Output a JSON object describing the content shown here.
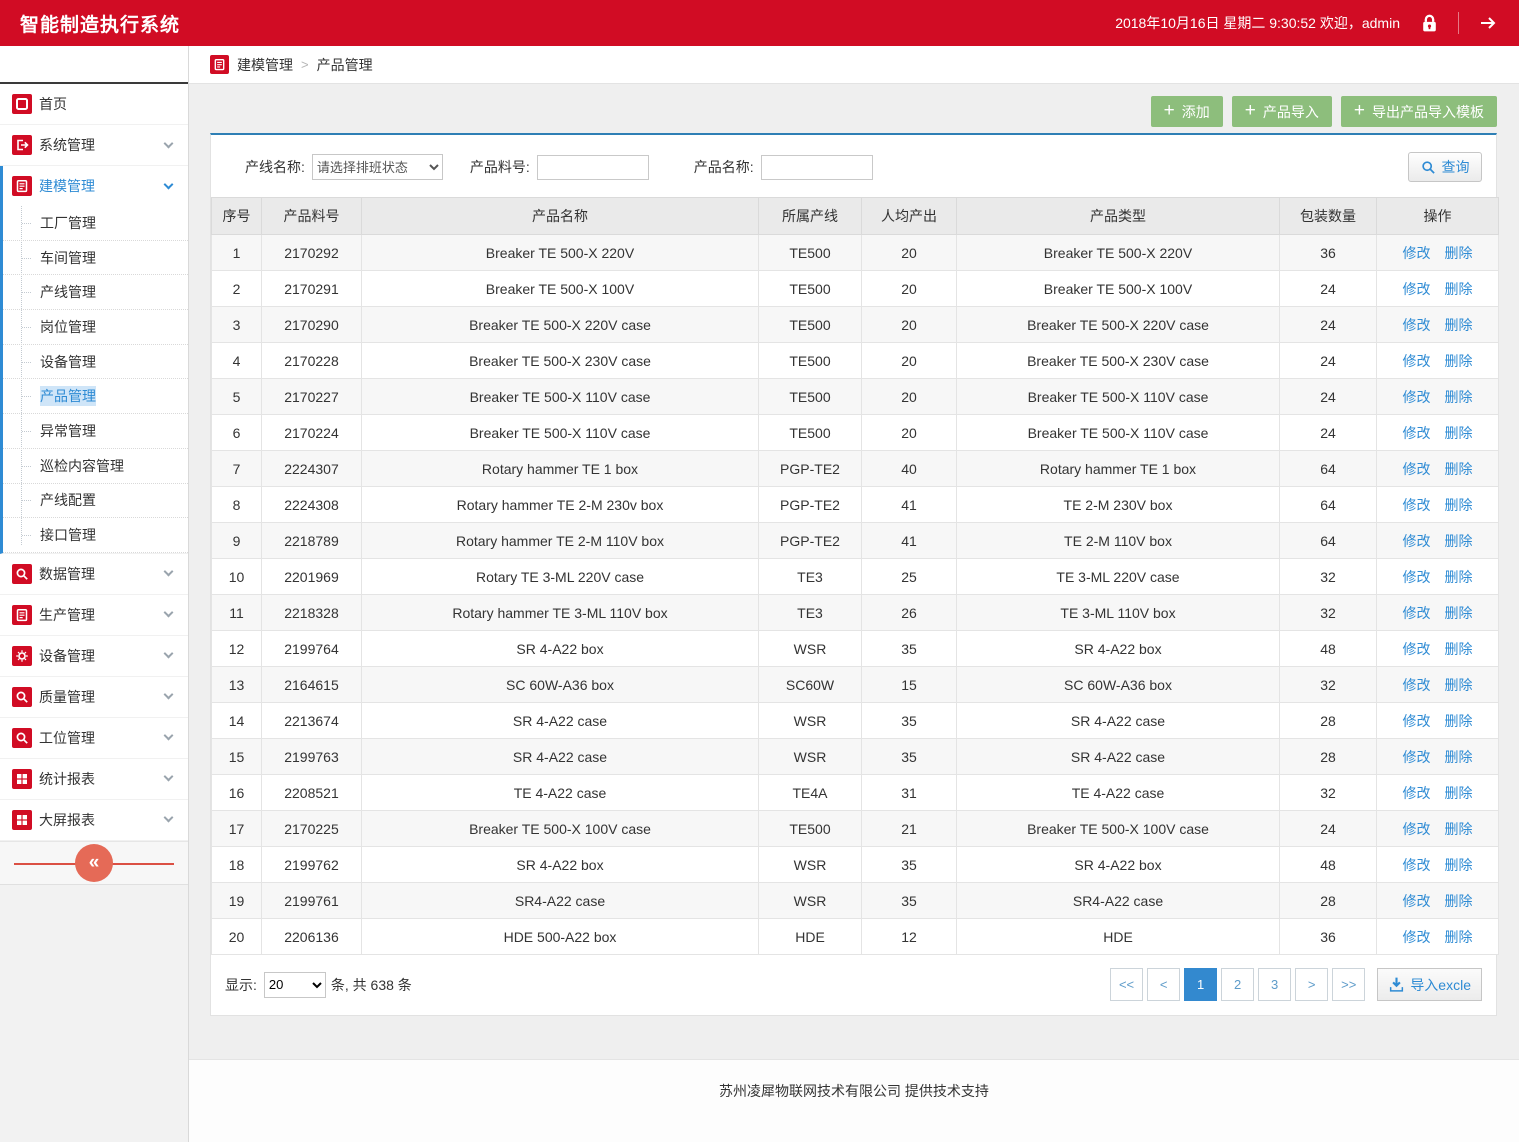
{
  "colors": {
    "header_red": "#d10c24",
    "accent_blue": "#2e8bd4",
    "button_green": "#8dbe7c",
    "panel_top_blue": "#2e7fb5"
  },
  "app": {
    "title": "智能制造执行系统",
    "datetime": "2018年10月16日 星期二 9:30:52 欢迎，admin"
  },
  "breadcrumb": {
    "section": "建模管理",
    "separator": ">",
    "page": "产品管理"
  },
  "sidebar": {
    "collapse_glyph": "«",
    "items": [
      {
        "key": "home",
        "label": "首页",
        "icon": "home-icon",
        "expandable": false
      },
      {
        "key": "system-mgmt",
        "label": "系统管理",
        "icon": "logout-icon",
        "expandable": true
      },
      {
        "key": "modeling-mgmt",
        "label": "建模管理",
        "icon": "clipboard-icon",
        "expandable": true,
        "active": true,
        "children": [
          {
            "key": "factory-mgmt",
            "label": "工厂管理"
          },
          {
            "key": "workshop-mgmt",
            "label": "车间管理"
          },
          {
            "key": "line-mgmt",
            "label": "产线管理"
          },
          {
            "key": "post-mgmt",
            "label": "岗位管理"
          },
          {
            "key": "device-mgmt",
            "label": "设备管理"
          },
          {
            "key": "product-mgmt",
            "label": "产品管理",
            "selected": true
          },
          {
            "key": "exception-mgmt",
            "label": "异常管理"
          },
          {
            "key": "inspection-content-mgmt",
            "label": "巡检内容管理"
          },
          {
            "key": "line-config",
            "label": "产线配置"
          },
          {
            "key": "interface-mgmt",
            "label": "接口管理"
          }
        ]
      },
      {
        "key": "data-mgmt",
        "label": "数据管理",
        "icon": "search-icon",
        "expandable": true
      },
      {
        "key": "production-mgmt",
        "label": "生产管理",
        "icon": "doc-icon",
        "expandable": true
      },
      {
        "key": "equipment-mgmt",
        "label": "设备管理",
        "icon": "gear-icon",
        "expandable": true
      },
      {
        "key": "quality-mgmt",
        "label": "质量管理",
        "icon": "search-icon",
        "expandable": true
      },
      {
        "key": "workstation-mgmt",
        "label": "工位管理",
        "icon": "search-icon",
        "expandable": true
      },
      {
        "key": "stats-report",
        "label": "统计报表",
        "icon": "report-icon",
        "expandable": true
      },
      {
        "key": "bigscreen-report",
        "label": "大屏报表",
        "icon": "report-icon",
        "expandable": true
      }
    ]
  },
  "toolbar": {
    "buttons": [
      {
        "key": "add",
        "label": "添加",
        "icon": "plus-icon"
      },
      {
        "key": "product-import",
        "label": "产品导入",
        "icon": "plus-icon"
      },
      {
        "key": "export-template",
        "label": "导出产品导入模板",
        "icon": "plus-icon"
      }
    ]
  },
  "filters": {
    "line_label": "产线名称:",
    "line_value": "请选择排班状态",
    "part_label": "产品料号:",
    "part_value": "",
    "name_label": "产品名称:",
    "name_value": "",
    "search_label": "查询"
  },
  "table": {
    "columns": [
      "序号",
      "产品料号",
      "产品名称",
      "所属产线",
      "人均产出",
      "产品类型",
      "包装数量",
      "操作"
    ],
    "column_keys": [
      "no",
      "part",
      "name",
      "line",
      "output",
      "type",
      "qty"
    ],
    "actions": [
      "修改",
      "删除"
    ],
    "rows": [
      {
        "no": "1",
        "part": "2170292",
        "name": "Breaker TE 500-X 220V",
        "line": "TE500",
        "output": "20",
        "type": "Breaker TE 500-X 220V",
        "qty": "36"
      },
      {
        "no": "2",
        "part": "2170291",
        "name": "Breaker TE 500-X 100V",
        "line": "TE500",
        "output": "20",
        "type": "Breaker TE 500-X 100V",
        "qty": "24"
      },
      {
        "no": "3",
        "part": "2170290",
        "name": "Breaker TE 500-X 220V case",
        "line": "TE500",
        "output": "20",
        "type": "Breaker TE 500-X 220V case",
        "qty": "24"
      },
      {
        "no": "4",
        "part": "2170228",
        "name": "Breaker TE 500-X 230V case",
        "line": "TE500",
        "output": "20",
        "type": "Breaker TE 500-X 230V case",
        "qty": "24"
      },
      {
        "no": "5",
        "part": "2170227",
        "name": "Breaker TE 500-X 110V case",
        "line": "TE500",
        "output": "20",
        "type": "Breaker TE 500-X 110V case",
        "qty": "24"
      },
      {
        "no": "6",
        "part": "2170224",
        "name": "Breaker TE 500-X 110V case",
        "line": "TE500",
        "output": "20",
        "type": "Breaker TE 500-X 110V case",
        "qty": "24"
      },
      {
        "no": "7",
        "part": "2224307",
        "name": "Rotary hammer TE 1 box",
        "line": "PGP-TE2",
        "output": "40",
        "type": "Rotary hammer TE 1 box",
        "qty": "64"
      },
      {
        "no": "8",
        "part": "2224308",
        "name": "Rotary hammer TE 2-M 230v box",
        "line": "PGP-TE2",
        "output": "41",
        "type": "TE 2-M 230V box",
        "qty": "64"
      },
      {
        "no": "9",
        "part": "2218789",
        "name": "Rotary hammer TE 2-M 110V box",
        "line": "PGP-TE2",
        "output": "41",
        "type": "TE 2-M 110V box",
        "qty": "64"
      },
      {
        "no": "10",
        "part": "2201969",
        "name": "Rotary TE 3-ML 220V case",
        "line": "TE3",
        "output": "25",
        "type": "TE 3-ML 220V case",
        "qty": "32"
      },
      {
        "no": "11",
        "part": "2218328",
        "name": "Rotary hammer TE 3-ML 110V box",
        "line": "TE3",
        "output": "26",
        "type": "TE 3-ML 110V box",
        "qty": "32"
      },
      {
        "no": "12",
        "part": "2199764",
        "name": "SR 4-A22 box",
        "line": "WSR",
        "output": "35",
        "type": "SR 4-A22 box",
        "qty": "48"
      },
      {
        "no": "13",
        "part": "2164615",
        "name": "SC 60W-A36 box",
        "line": "SC60W",
        "output": "15",
        "type": "SC 60W-A36 box",
        "qty": "32"
      },
      {
        "no": "14",
        "part": "2213674",
        "name": "SR 4-A22 case",
        "line": "WSR",
        "output": "35",
        "type": "SR 4-A22 case",
        "qty": "28"
      },
      {
        "no": "15",
        "part": "2199763",
        "name": "SR 4-A22 case",
        "line": "WSR",
        "output": "35",
        "type": "SR 4-A22 case",
        "qty": "28"
      },
      {
        "no": "16",
        "part": "2208521",
        "name": "TE 4-A22 case",
        "line": "TE4A",
        "output": "31",
        "type": "TE 4-A22 case",
        "qty": "32"
      },
      {
        "no": "17",
        "part": "2170225",
        "name": "Breaker TE 500-X 100V case",
        "line": "TE500",
        "output": "21",
        "type": "Breaker TE 500-X 100V case",
        "qty": "24"
      },
      {
        "no": "18",
        "part": "2199762",
        "name": "SR 4-A22 box",
        "line": "WSR",
        "output": "35",
        "type": "SR 4-A22 box",
        "qty": "48"
      },
      {
        "no": "19",
        "part": "2199761",
        "name": "SR4-A22 case",
        "line": "WSR",
        "output": "35",
        "type": "SR4-A22 case",
        "qty": "28"
      },
      {
        "no": "20",
        "part": "2206136",
        "name": "HDE 500-A22 box",
        "line": "HDE",
        "output": "12",
        "type": "HDE",
        "qty": "36"
      }
    ]
  },
  "pagination": {
    "show_label": "显示:",
    "page_size": "20",
    "total_text": "条, 共 638 条",
    "buttons": [
      {
        "key": "first",
        "label": "<<"
      },
      {
        "key": "prev",
        "label": "<"
      },
      {
        "key": "page-1",
        "label": "1",
        "active": true
      },
      {
        "key": "page-2",
        "label": "2"
      },
      {
        "key": "page-3",
        "label": "3"
      },
      {
        "key": "next",
        "label": ">"
      },
      {
        "key": "last",
        "label": ">>"
      }
    ],
    "import_label": "导入excle"
  },
  "footer": {
    "text": "苏州凌犀物联网技术有限公司 提供技术支持"
  }
}
